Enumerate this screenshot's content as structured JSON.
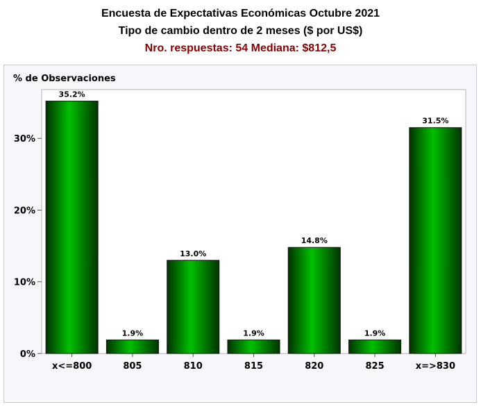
{
  "header": {
    "title": "Encuesta de Expectativas Económicas Octubre 2021",
    "subtitle": "Tipo de cambio dentro de 2 meses ($ por US$)",
    "stats": "Nro. respuestas: 54 Mediana: $812,5"
  },
  "colors": {
    "title": "#000000",
    "stats": "#8b0000",
    "bar_light": "#00c000",
    "bar_dark": "#003300",
    "panel_bg": "#f6f6fb",
    "plot_bg": "#ffffff"
  },
  "chart_data": {
    "type": "bar",
    "title": "Encuesta de Expectativas Económicas Octubre 2021",
    "ylabel": "% de Observaciones",
    "xlabel": "",
    "categories": [
      "x<=800",
      "805",
      "810",
      "815",
      "820",
      "825",
      "x=>830"
    ],
    "values": [
      35.2,
      1.9,
      13.0,
      1.9,
      14.8,
      1.9,
      31.5
    ],
    "data_labels": [
      "35.2%",
      "1.9%",
      "13.0%",
      "1.9%",
      "14.8%",
      "1.9%",
      "31.5%"
    ],
    "yticks": [
      0,
      10,
      20,
      30
    ],
    "ytick_labels": [
      "0%",
      "10%",
      "20%",
      "30%"
    ],
    "ylim": [
      0,
      36.8
    ],
    "grid": false,
    "legend": "none"
  }
}
